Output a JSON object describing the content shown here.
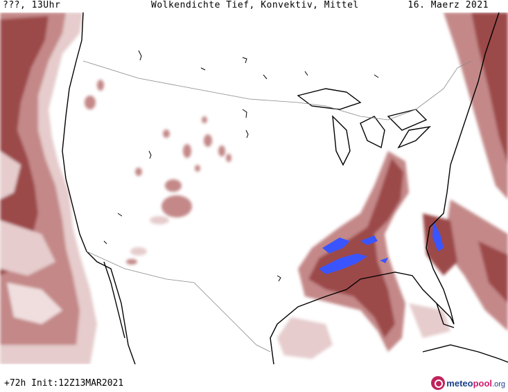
{
  "header": {
    "left": "???, 13Uhr",
    "center": "Wolkendichte  Tief, Konvektiv, Mittel",
    "right": "16. Maerz 2021"
  },
  "footer": {
    "left": "+72h Init:12Z13MAR2021"
  },
  "brand": {
    "part1": "meteo",
    "part2": "pool",
    "part3": ".org"
  },
  "colors": {
    "cloud_light": "#e6cccc",
    "cloud_mid": "#c48888",
    "cloud_dark": "#9c4a4a",
    "convective": "#3a55ff",
    "coast": "#000000",
    "border": "#888888"
  }
}
